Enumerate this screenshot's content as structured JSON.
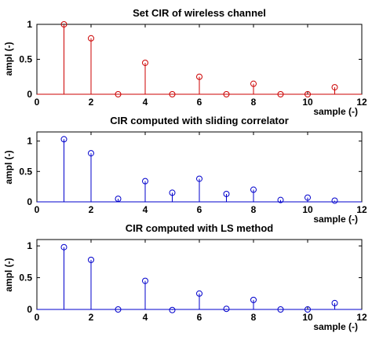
{
  "chart_data": [
    {
      "type": "stem",
      "title": "Set CIR of wireless channel",
      "xlabel": "sample (-)",
      "ylabel": "ampl (-)",
      "xlim": [
        0,
        12
      ],
      "ylim": [
        0,
        1
      ],
      "xticks": [
        0,
        2,
        4,
        6,
        8,
        10,
        12
      ],
      "yticks": [
        0,
        0.5,
        1
      ],
      "xtick_labels": [
        "0",
        "2",
        "4",
        "6",
        "8",
        "10",
        "12"
      ],
      "ytick_labels": [
        "0",
        "0.5",
        "1"
      ],
      "color": "#cc0000",
      "x": [
        1,
        2,
        3,
        4,
        5,
        6,
        7,
        8,
        9,
        10,
        11
      ],
      "y": [
        1.0,
        0.8,
        0.0,
        0.45,
        0.0,
        0.25,
        0.0,
        0.15,
        0.0,
        0.0,
        0.1
      ]
    },
    {
      "type": "stem",
      "title": "CIR computed with sliding correlator",
      "xlabel": "sample (-)",
      "ylabel": "ampl (-)",
      "xlim": [
        0,
        12
      ],
      "ylim": [
        0,
        1.15
      ],
      "xticks": [
        0,
        2,
        4,
        6,
        8,
        10,
        12
      ],
      "yticks": [
        0,
        0.5,
        1
      ],
      "xtick_labels": [
        "0",
        "2",
        "4",
        "6",
        "8",
        "10",
        "12"
      ],
      "ytick_labels": [
        "0",
        "0.5",
        "1"
      ],
      "color": "#0000cc",
      "x": [
        1,
        2,
        3,
        4,
        5,
        6,
        7,
        8,
        9,
        10,
        11
      ],
      "y": [
        1.03,
        0.8,
        0.05,
        0.34,
        0.15,
        0.38,
        0.13,
        0.2,
        0.03,
        0.07,
        0.02
      ]
    },
    {
      "type": "stem",
      "title": "CIR computed with LS method",
      "xlabel": "sample (-)",
      "ylabel": "ampl (-)",
      "xlim": [
        0,
        12
      ],
      "ylim": [
        0,
        1.1
      ],
      "xticks": [
        0,
        2,
        4,
        6,
        8,
        10,
        12
      ],
      "yticks": [
        0,
        0.5,
        1
      ],
      "xtick_labels": [
        "0",
        "2",
        "4",
        "6",
        "8",
        "10",
        "12"
      ],
      "ytick_labels": [
        "0",
        "0.5",
        "1"
      ],
      "color": "#0000cc",
      "x": [
        1,
        2,
        3,
        4,
        5,
        6,
        7,
        8,
        9,
        10,
        11
      ],
      "y": [
        0.98,
        0.78,
        0.0,
        0.45,
        -0.01,
        0.25,
        0.01,
        0.15,
        0.0,
        0.0,
        0.1
      ]
    }
  ]
}
